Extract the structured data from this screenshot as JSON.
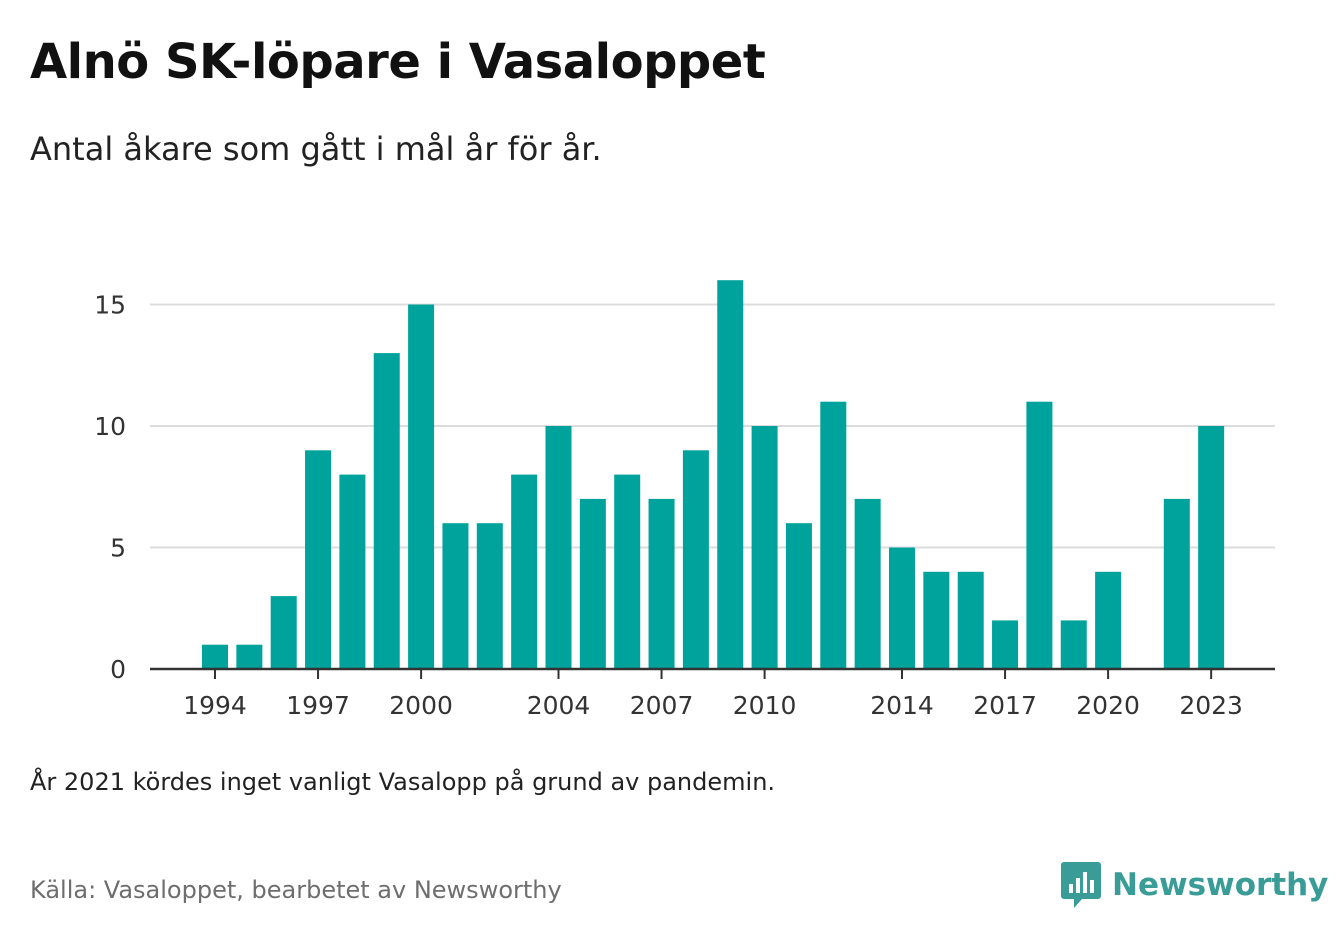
{
  "title": "Alnö SK-löpare i Vasaloppet",
  "subtitle": "Antal åkare som gått i mål år för år.",
  "note": "År 2021 kördes inget vanligt Vasalopp på grund av pandemin.",
  "source": "Källa: Vasaloppet, bearbetet av Newsworthy",
  "brand": {
    "name": "Newsworthy",
    "icon": "newsworthy-logo-icon",
    "color": "#3a9c96"
  },
  "chart_data": {
    "type": "bar",
    "title": "Alnö SK-löpare i Vasaloppet",
    "subtitle": "Antal åkare som gått i mål år för år.",
    "xlabel": "",
    "ylabel": "",
    "color": "#00a39b",
    "grid": true,
    "ylim": [
      0,
      16
    ],
    "yticks": [
      0,
      5,
      10,
      15
    ],
    "xticks": [
      1994,
      1997,
      2000,
      2004,
      2007,
      2010,
      2014,
      2017,
      2020,
      2023
    ],
    "years": [
      1994,
      1995,
      1996,
      1997,
      1998,
      1999,
      2000,
      2001,
      2002,
      2003,
      2004,
      2005,
      2006,
      2007,
      2008,
      2009,
      2010,
      2011,
      2012,
      2013,
      2014,
      2015,
      2016,
      2017,
      2018,
      2019,
      2020,
      2022,
      2023
    ],
    "values": [
      1,
      1,
      3,
      9,
      8,
      13,
      15,
      6,
      6,
      8,
      10,
      7,
      8,
      7,
      9,
      16,
      10,
      6,
      11,
      7,
      5,
      4,
      4,
      2,
      11,
      2,
      4,
      7,
      10
    ]
  }
}
